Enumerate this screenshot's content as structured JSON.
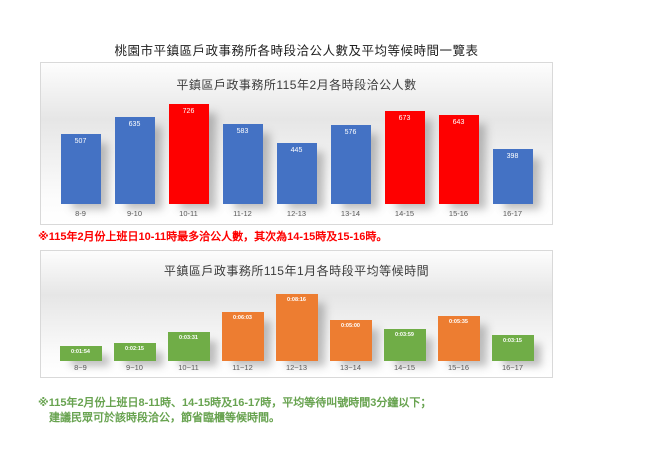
{
  "page": {
    "title": "桃園市平鎮區戶政事務所各時段洽公人數及平均等候時間一覽表"
  },
  "chart_data": [
    {
      "type": "bar",
      "title": "平鎮區戶政事務所115年2月各時段洽公人數",
      "categories": [
        "8-9",
        "9-10",
        "10-11",
        "11-12",
        "12-13",
        "13-14",
        "14-15",
        "15-16",
        "16-17"
      ],
      "values": [
        507,
        635,
        726,
        583,
        445,
        576,
        673,
        643,
        398
      ],
      "data_labels": [
        "507",
        "635",
        "726",
        "583",
        "445",
        "576",
        "673",
        "643",
        "398"
      ],
      "bar_colors": [
        "#4472C4",
        "#4472C4",
        "#FE0000",
        "#4472C4",
        "#4472C4",
        "#4472C4",
        "#FE0000",
        "#FE0000",
        "#4472C4"
      ],
      "xlabel": "",
      "ylabel": "",
      "ylim": [
        0,
        726
      ],
      "grid": false,
      "legend": "none",
      "y_axis_hidden": true,
      "data_label_position": "inside-end-white"
    },
    {
      "type": "bar",
      "title": "平鎮區戶政事務所115年1月各時段平均等候時間",
      "categories": [
        "8~9",
        "9~10",
        "10~11",
        "11~12",
        "12~13",
        "13~14",
        "14~15",
        "15~16",
        "16~17"
      ],
      "values": [
        114,
        135,
        211,
        363,
        496,
        300,
        239,
        335,
        195
      ],
      "values_unit": "seconds",
      "data_labels": [
        "0:01:54",
        "0:02:15",
        "0:03:31",
        "0:06:03",
        "0:08:16",
        "0:05:00",
        "0:03:59",
        "0:05:35",
        "0:03:15"
      ],
      "bar_colors": [
        "#70AD47",
        "#70AD47",
        "#70AD47",
        "#ED7D31",
        "#ED7D31",
        "#ED7D31",
        "#70AD47",
        "#ED7D31",
        "#70AD47"
      ],
      "xlabel": "",
      "ylabel": "",
      "ylim": [
        0,
        496
      ],
      "grid": false,
      "legend": "none",
      "y_axis_hidden": true,
      "data_label_position": "inside-end-white"
    }
  ],
  "notes": {
    "note1": "※115年2月份上班日10-11時最多洽公人數，其次為14-15時及15-16時。",
    "note2_line1": "※115年2月份上班日8-11時、14-15時及16-17時，平均等待叫號時間3分鐘以下；",
    "note2_line2": "建議民眾可於該時段洽公，節省臨櫃等候時間。"
  },
  "colors": {
    "bar_blue": "#4472C4",
    "bar_red": "#FE0000",
    "bar_green": "#70AD47",
    "bar_orange": "#ED7D31",
    "note_red": "#FE0000",
    "note_green": "#68A350",
    "panel_border": "#D9D9D9",
    "category_label": "#595959",
    "chart_title": "#3B3B3B"
  }
}
